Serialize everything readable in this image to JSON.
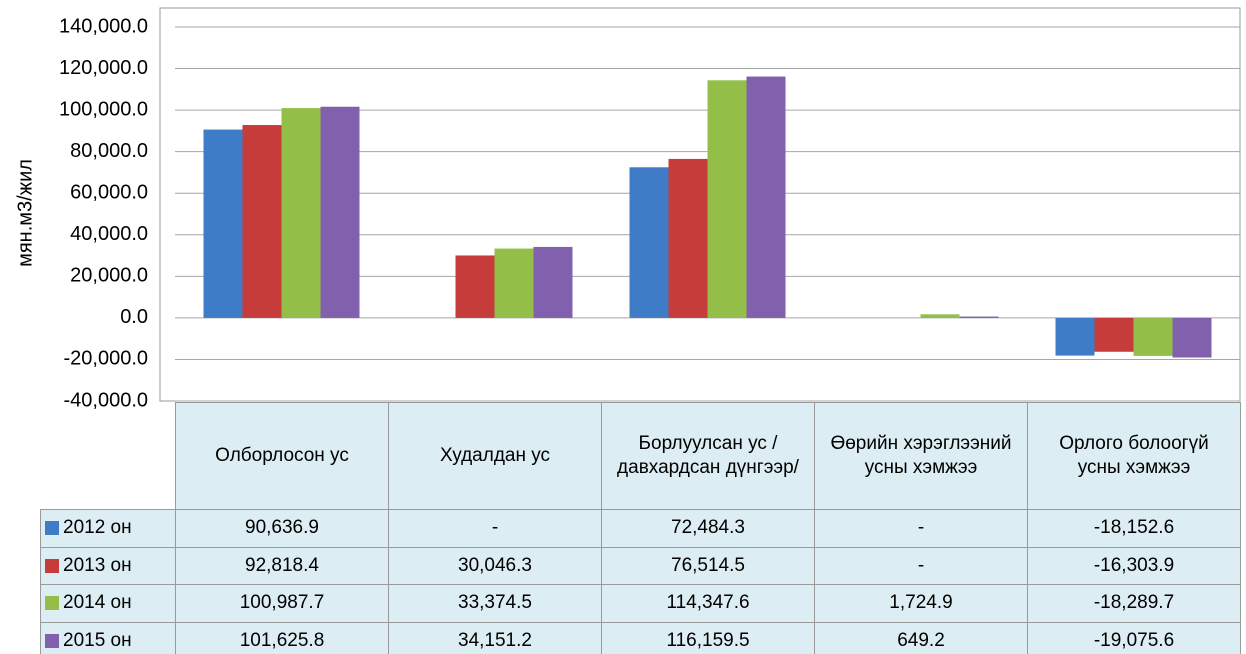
{
  "chart_data": {
    "type": "bar",
    "y_label": "мян.м3/жил",
    "categories": [
      "Олборлосон ус",
      "Худалдан ус",
      "Борлуулсан ус /давхардсан дүнгээр/",
      "Өөрийн хэрэглээний усны хэмжээ",
      "Орлого болоогүй усны хэмжээ"
    ],
    "series": [
      {
        "name": "2012 он",
        "color": "#3f7cc8",
        "values": [
          90636.9,
          null,
          72484.3,
          null,
          -18152.6
        ],
        "value_labels": [
          "90,636.9",
          "-",
          "72,484.3",
          "-",
          "-18,152.6"
        ]
      },
      {
        "name": "2013 он",
        "color": "#c63c3b",
        "values": [
          92818.4,
          30046.3,
          76514.5,
          null,
          -16303.9
        ],
        "value_labels": [
          "92,818.4",
          "30,046.3",
          "76,514.5",
          "-",
          "-16,303.9"
        ]
      },
      {
        "name": "2014 он",
        "color": "#93bf48",
        "values": [
          100987.7,
          33374.5,
          114347.6,
          1724.9,
          -18289.7
        ],
        "value_labels": [
          "100,987.7",
          "33,374.5",
          "114,347.6",
          "1,724.9",
          "-18,289.7"
        ]
      },
      {
        "name": "2015 он",
        "color": "#8160ad",
        "values": [
          101625.8,
          34151.2,
          116159.5,
          649.2,
          -19075.6
        ],
        "value_labels": [
          "101,625.8",
          "34,151.2",
          "116,159.5",
          "649.2",
          "-19,075.6"
        ]
      }
    ],
    "ylim": [
      -40000,
      140000
    ],
    "yticks": [
      {
        "value": -40000,
        "label": "-40,000.0"
      },
      {
        "value": -20000,
        "label": "-20,000.0"
      },
      {
        "value": 0,
        "label": "0.0"
      },
      {
        "value": 20000,
        "label": "20,000.0"
      },
      {
        "value": 40000,
        "label": "40,000.0"
      },
      {
        "value": 60000,
        "label": "60,000.0"
      },
      {
        "value": 80000,
        "label": "80,000.0"
      },
      {
        "value": 100000,
        "label": "100,000.0"
      },
      {
        "value": 120000,
        "label": "120,000.0"
      },
      {
        "value": 140000,
        "label": "140,000.0"
      }
    ],
    "grid": true
  }
}
